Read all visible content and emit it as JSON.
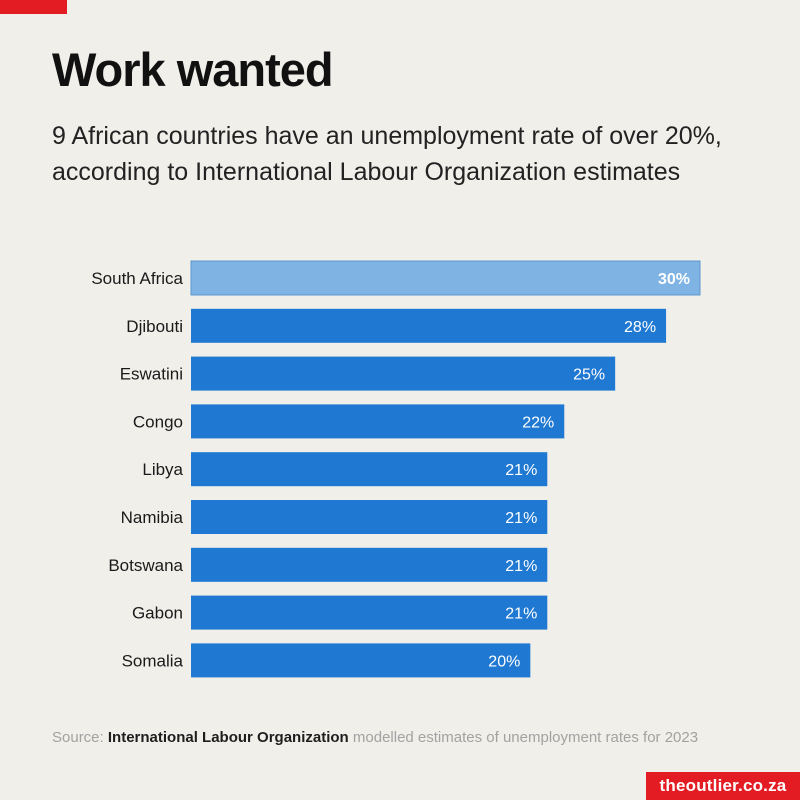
{
  "title": "Work wanted",
  "subtitle": "9 African countries have an unemployment rate of over 20%, according to International Labour Organization estimates",
  "source": {
    "prefix": "Source: ",
    "org": "International Labour Organization",
    "suffix": " modelled estimates of unemployment rates for 2023"
  },
  "brand": "theoutlier.co.za",
  "colors": {
    "bar": "#1f78d1",
    "highlight_bar": "#7fb3e3",
    "accent": "#e31b23",
    "background": "#f1efea"
  },
  "chart_data": {
    "type": "bar",
    "orientation": "horizontal",
    "categories": [
      "South Africa",
      "Djibouti",
      "Eswatini",
      "Congo",
      "Libya",
      "Namibia",
      "Botswana",
      "Gabon",
      "Somalia"
    ],
    "values": [
      30,
      28,
      25,
      22,
      21,
      21,
      21,
      21,
      20
    ],
    "value_labels": [
      "30%",
      "28%",
      "25%",
      "22%",
      "21%",
      "21%",
      "21%",
      "21%",
      "20%"
    ],
    "highlight": "South Africa",
    "xlim": [
      0,
      30
    ],
    "grid": false,
    "legend": "none"
  }
}
